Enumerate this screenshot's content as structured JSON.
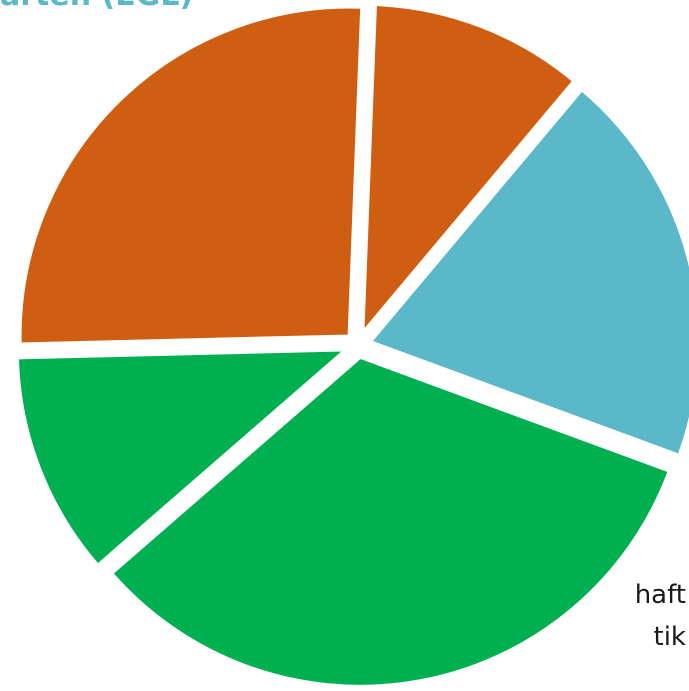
{
  "labels": {
    "top_fragment": "arten (EGL)",
    "side_fragment_1": "haft",
    "side_fragment_2": "tik"
  },
  "colors": {
    "blue": "#5bb8c9",
    "green": "#00b050",
    "orange": "#d05e12",
    "text_blue": "#5bb8c9",
    "text_dark": "#1a1a1a"
  },
  "chart_data": {
    "type": "pie",
    "start_angle_deg": -50,
    "slices": [
      {
        "value": 19.5,
        "color": "#5bb8c9"
      },
      {
        "value": 33.0,
        "color": "#00b050"
      },
      {
        "value": 11.0,
        "color": "#00b050"
      },
      {
        "value": 26.0,
        "color": "#d05e12"
      },
      {
        "value": 10.5,
        "color": "#d05e12"
      }
    ]
  }
}
